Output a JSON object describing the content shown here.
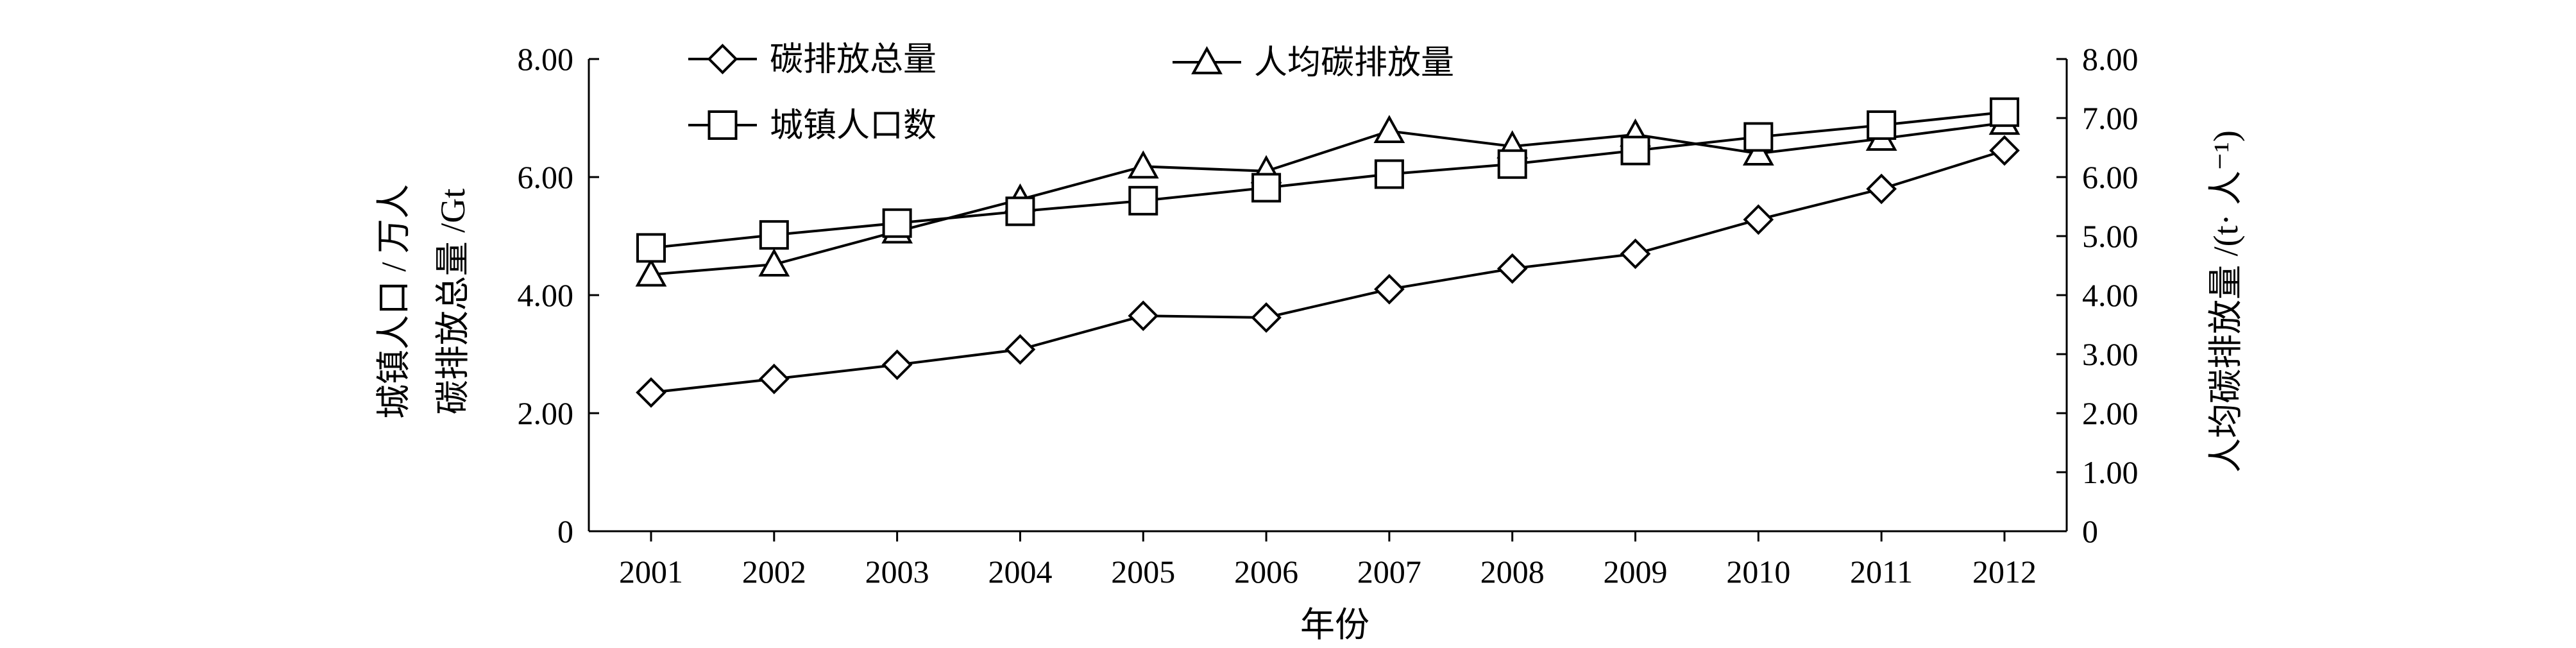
{
  "chart_data": {
    "type": "line",
    "title": "",
    "xlabel": "年份",
    "ylabel_left": [
      "城镇人口 / 万人",
      "碳排放总量 /Gt"
    ],
    "ylabel_right": "人均碳排放量 /(t· 人⁻¹)",
    "x": [
      "2001",
      "2002",
      "2003",
      "2004",
      "2005",
      "2006",
      "2007",
      "2008",
      "2009",
      "2010",
      "2011",
      "2012"
    ],
    "ylim_left": [
      0,
      8
    ],
    "ylim_right": [
      0,
      8
    ],
    "yticks_left": [
      "0",
      "2.00",
      "4.00",
      "6.00",
      "8.00"
    ],
    "yticks_right": [
      "0",
      "1.00",
      "2.00",
      "3.00",
      "4.00",
      "5.00",
      "6.00",
      "7.00",
      "8.00"
    ],
    "grid": false,
    "legend_position": "top",
    "series": [
      {
        "name": "碳排放总量",
        "marker": "diamond",
        "axis": "left",
        "values": [
          2.35,
          2.58,
          2.82,
          3.08,
          3.65,
          3.62,
          4.1,
          4.45,
          4.7,
          5.28,
          5.8,
          6.45
        ]
      },
      {
        "name": "人均碳排放量",
        "marker": "triangle",
        "axis": "right",
        "values": [
          4.35,
          4.52,
          5.08,
          5.62,
          6.18,
          6.1,
          6.78,
          6.52,
          6.72,
          6.4,
          6.65,
          6.92
        ]
      },
      {
        "name": "城镇人口数",
        "marker": "square",
        "axis": "left",
        "values": [
          4.8,
          5.02,
          5.22,
          5.42,
          5.6,
          5.82,
          6.05,
          6.22,
          6.45,
          6.68,
          6.88,
          7.1
        ]
      }
    ]
  }
}
